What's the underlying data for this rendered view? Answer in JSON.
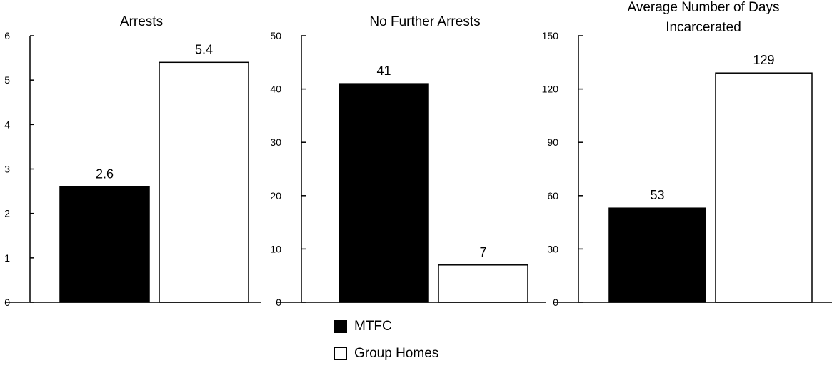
{
  "chart_data": [
    {
      "type": "bar",
      "title": [
        "Arrests"
      ],
      "ylim": [
        0,
        6
      ],
      "ticks": [
        0,
        1,
        2,
        3,
        4,
        5,
        6
      ],
      "series": [
        {
          "name": "MTFC",
          "values": [
            2.6
          ],
          "labels": [
            "2.6"
          ]
        },
        {
          "name": "Group Homes",
          "values": [
            5.4
          ],
          "labels": [
            "5.4"
          ]
        }
      ]
    },
    {
      "type": "bar",
      "title": [
        "No Further Arrests"
      ],
      "ylim": [
        0,
        50
      ],
      "ticks": [
        0,
        10,
        20,
        30,
        40,
        50
      ],
      "series": [
        {
          "name": "MTFC",
          "values": [
            41
          ],
          "labels": [
            "41"
          ]
        },
        {
          "name": "Group Homes",
          "values": [
            7
          ],
          "labels": [
            "7"
          ]
        }
      ]
    },
    {
      "type": "bar",
      "title": [
        "Average Number of Days",
        "Incarcerated"
      ],
      "ylim": [
        0,
        150
      ],
      "ticks": [
        0,
        30,
        60,
        90,
        120,
        150
      ],
      "series": [
        {
          "name": "MTFC",
          "values": [
            53
          ],
          "labels": [
            "53"
          ]
        },
        {
          "name": "Group Homes",
          "values": [
            129
          ],
          "labels": [
            "129"
          ]
        }
      ]
    }
  ],
  "legend": {
    "items": [
      {
        "label": "MTFC",
        "color": "#000000"
      },
      {
        "label": "Group Homes",
        "color": "#ffffff"
      }
    ]
  },
  "colors": {
    "mtfc": "#000000",
    "group_homes": "#ffffff",
    "axis": "#000000"
  }
}
